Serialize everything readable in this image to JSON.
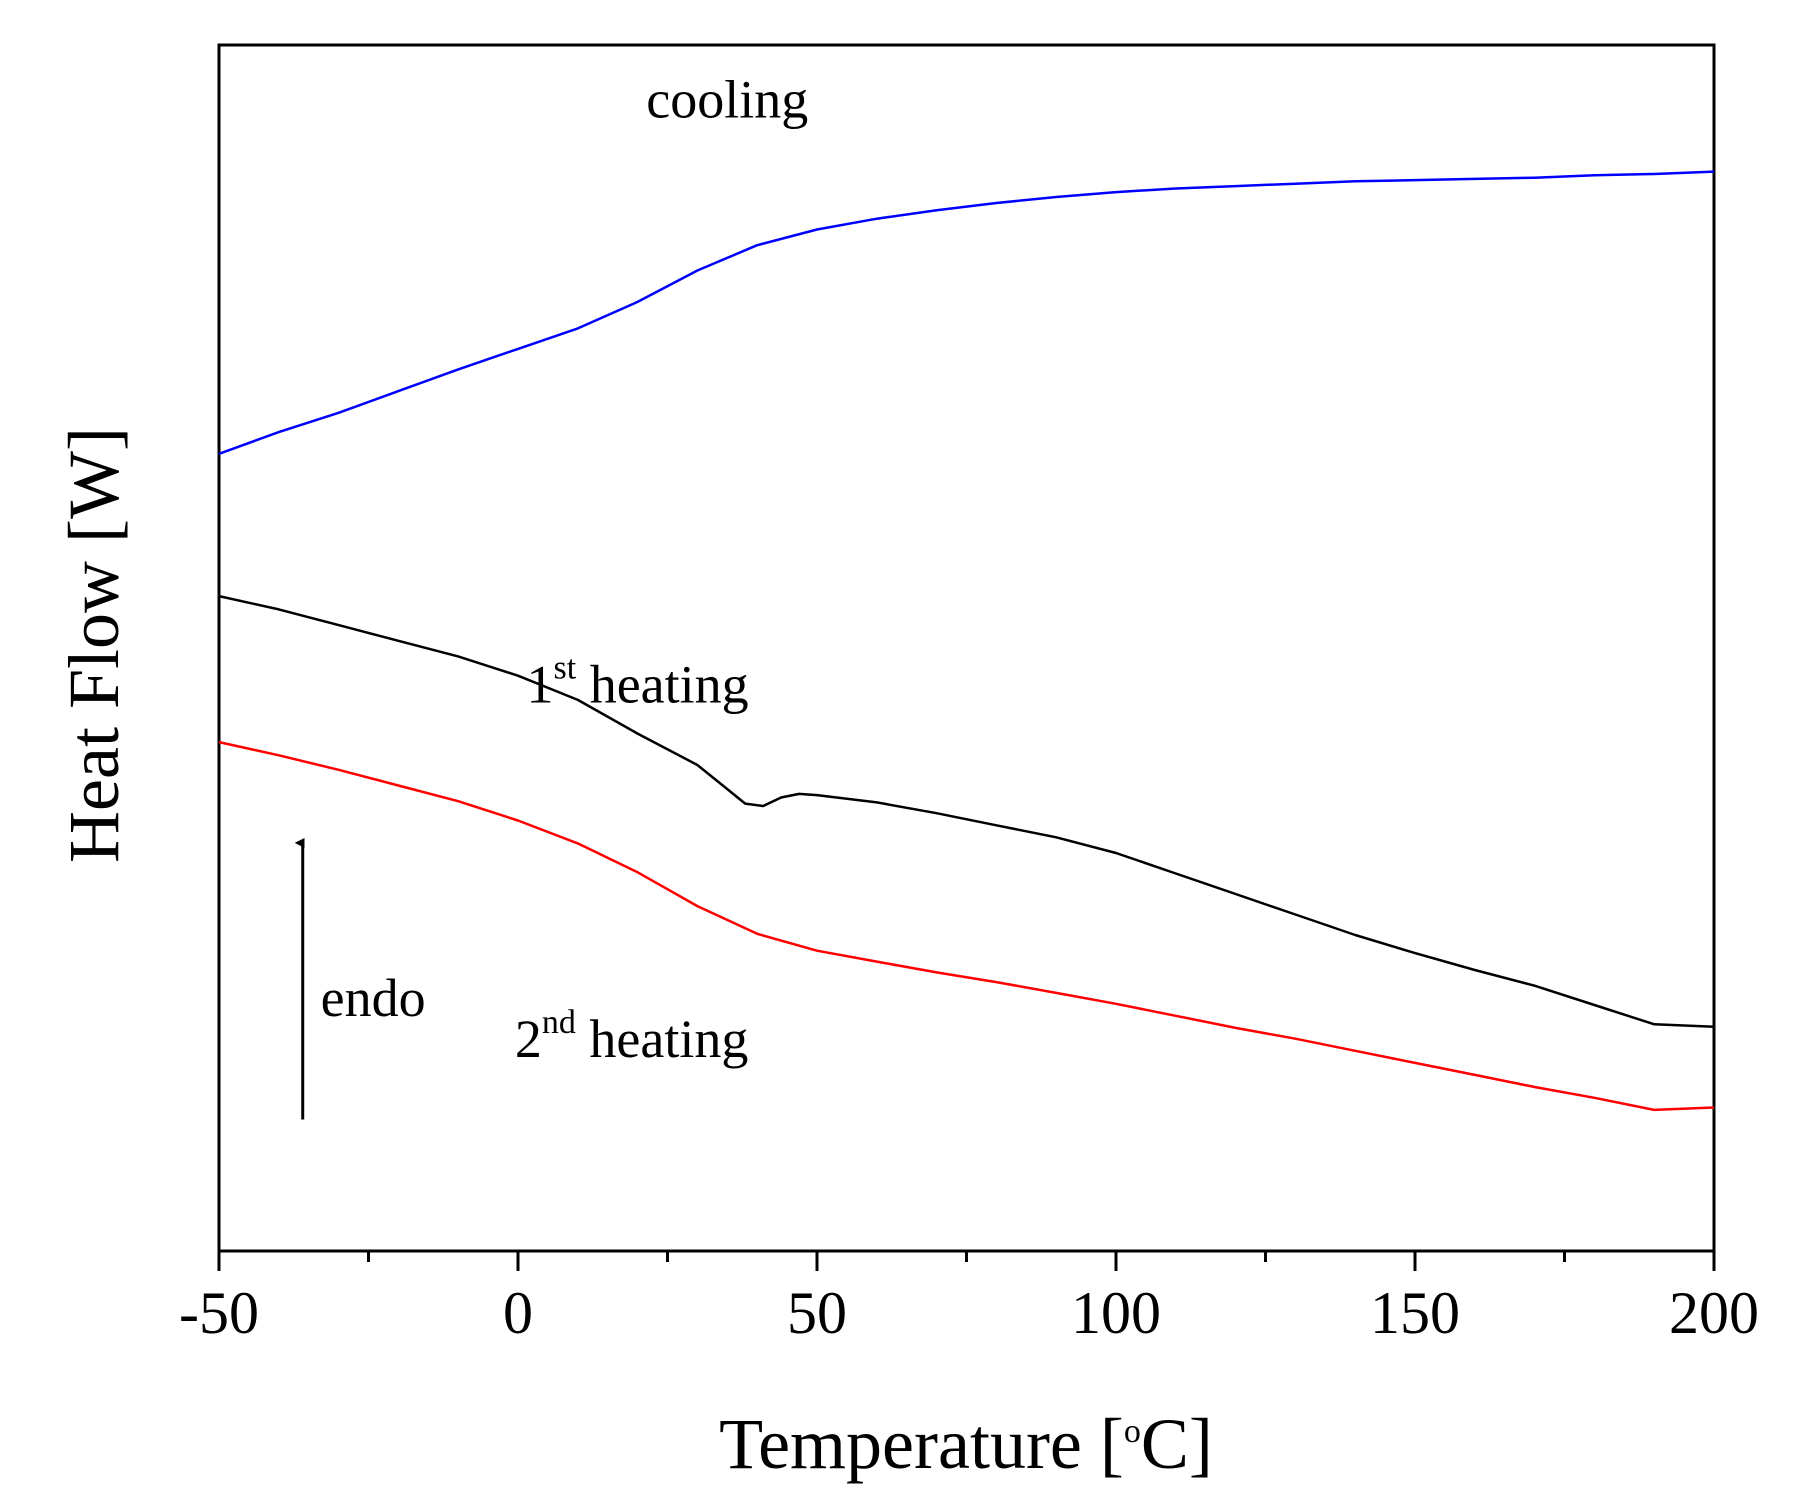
{
  "chart_data": {
    "type": "line",
    "title": "",
    "xlabel": "Temperature [°C]",
    "xlabel_parts": {
      "pre": "Temperature [",
      "sup": "o",
      "post": "C]"
    },
    "ylabel": "Heat Flow [W]",
    "xlim": [
      -50,
      200
    ],
    "ylim": [
      0,
      100
    ],
    "x_ticks": [
      -50,
      0,
      50,
      100,
      150,
      200
    ],
    "x_tick_labels": [
      "-50",
      "0",
      "50",
      "100",
      "150",
      "200"
    ],
    "x_minor_ticks": [
      -25,
      25,
      75,
      125,
      175
    ],
    "y_ticks_shown": false,
    "grid": false,
    "series": [
      {
        "name": "cooling",
        "label": "cooling",
        "color": "#0000ff",
        "x": [
          -50,
          -40,
          -30,
          -20,
          -10,
          0,
          10,
          20,
          30,
          40,
          50,
          60,
          70,
          80,
          90,
          100,
          110,
          120,
          130,
          140,
          150,
          160,
          170,
          180,
          190,
          200
        ],
        "y": [
          66.1,
          67.9,
          69.5,
          71.3,
          73.1,
          74.8,
          76.5,
          78.7,
          81.3,
          83.4,
          84.7,
          85.6,
          86.3,
          86.9,
          87.4,
          87.8,
          88.1,
          88.3,
          88.5,
          88.7,
          88.8,
          88.9,
          89.0,
          89.2,
          89.3,
          89.5
        ]
      },
      {
        "name": "1st heating",
        "label_main": "1",
        "label_sup": "st",
        "label_rest": " heating",
        "color": "#000000",
        "x": [
          -50,
          -40,
          -30,
          -20,
          -10,
          0,
          10,
          20,
          30,
          35,
          38,
          41,
          44,
          47,
          50,
          60,
          70,
          80,
          90,
          100,
          110,
          120,
          130,
          140,
          150,
          160,
          170,
          180,
          190,
          200
        ],
        "y": [
          54.3,
          53.2,
          51.9,
          50.6,
          49.3,
          47.7,
          45.7,
          42.9,
          40.3,
          38.3,
          37.1,
          36.9,
          37.6,
          37.9,
          37.8,
          37.2,
          36.3,
          35.3,
          34.3,
          33.0,
          31.3,
          29.6,
          27.9,
          26.2,
          24.7,
          23.3,
          22.0,
          20.4,
          18.8,
          18.6
        ]
      },
      {
        "name": "2nd heating",
        "label_main": "2",
        "label_sup": "nd",
        "label_rest": " heating",
        "color": "#ff0000",
        "x": [
          -50,
          -40,
          -30,
          -20,
          -10,
          0,
          10,
          20,
          30,
          40,
          50,
          60,
          70,
          80,
          90,
          100,
          110,
          120,
          130,
          140,
          150,
          160,
          170,
          180,
          190,
          200
        ],
        "y": [
          42.2,
          41.1,
          39.9,
          38.6,
          37.3,
          35.7,
          33.8,
          31.4,
          28.6,
          26.3,
          24.9,
          24.0,
          23.1,
          22.3,
          21.4,
          20.5,
          19.5,
          18.5,
          17.6,
          16.6,
          15.6,
          14.6,
          13.6,
          12.7,
          11.7,
          11.9
        ]
      }
    ],
    "annotations": {
      "endo_text": "endo",
      "endo_arrow": {
        "x": -36,
        "y_from": 10.9,
        "y_to": 34.5
      },
      "cooling_at": {
        "x": 35,
        "y": 94
      },
      "heat1_at": {
        "x": 20,
        "y": 45.5
      },
      "heat2_at": {
        "x": 19,
        "y": 16.1
      },
      "endo_at": {
        "x": -33,
        "y": 19.5
      }
    }
  }
}
